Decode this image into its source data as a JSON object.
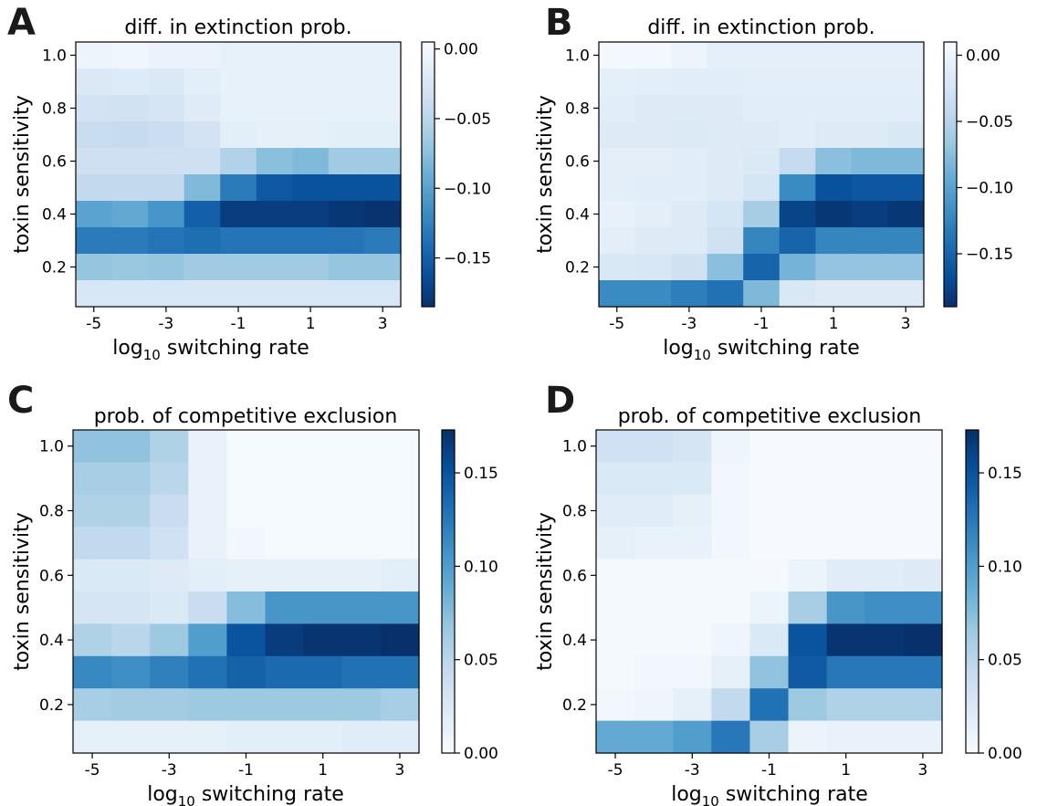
{
  "figure": {
    "colormap": [
      "#f7fbff",
      "#deebf7",
      "#c6dbef",
      "#9ecae1",
      "#6baed6",
      "#4292c6",
      "#2171b5",
      "#08519c",
      "#08306b"
    ]
  },
  "chart_data": [
    {
      "panel": "A",
      "type": "heatmap",
      "title": "diff. in extinction prob.",
      "xlabel_main": "log",
      "xlabel_sub": "10",
      "xlabel_rest": " switching rate",
      "ylabel": "toxin sensitivity",
      "x_ticks": [
        "-5",
        "-3",
        "-1",
        "1",
        "3"
      ],
      "y_ticks": [
        "1.0",
        "0.8",
        "0.6",
        "0.4",
        "0.2"
      ],
      "colorbar": {
        "min": -0.185,
        "max": 0.005,
        "ticks": [
          "0.00",
          "−0.05",
          "−0.10",
          "−0.15"
        ],
        "tick_values": [
          0.0,
          -0.05,
          -0.1,
          -0.15
        ],
        "reversed": true
      },
      "y_rows": [
        "1.0",
        "0.9",
        "0.8",
        "0.7",
        "0.6",
        "0.5",
        "0.4",
        "0.3",
        "0.2",
        "0.1"
      ],
      "x_cols": [
        -5,
        -4,
        -3,
        -2,
        -1,
        0,
        1,
        2,
        3
      ],
      "values": [
        [
          -0.005,
          -0.003,
          -0.007,
          -0.007,
          -0.01,
          -0.01,
          -0.01,
          -0.01,
          -0.01
        ],
        [
          -0.022,
          -0.02,
          -0.022,
          -0.015,
          -0.01,
          -0.01,
          -0.01,
          -0.01,
          -0.01
        ],
        [
          -0.03,
          -0.032,
          -0.028,
          -0.018,
          -0.01,
          -0.01,
          -0.01,
          -0.01,
          -0.01
        ],
        [
          -0.04,
          -0.042,
          -0.038,
          -0.03,
          -0.015,
          -0.012,
          -0.012,
          -0.015,
          -0.015
        ],
        [
          -0.035,
          -0.035,
          -0.035,
          -0.035,
          -0.055,
          -0.075,
          -0.08,
          -0.065,
          -0.065
        ],
        [
          -0.045,
          -0.045,
          -0.045,
          -0.08,
          -0.13,
          -0.155,
          -0.16,
          -0.16,
          -0.16
        ],
        [
          -0.1,
          -0.095,
          -0.11,
          -0.15,
          -0.175,
          -0.175,
          -0.175,
          -0.18,
          -0.183
        ],
        [
          -0.13,
          -0.13,
          -0.135,
          -0.14,
          -0.135,
          -0.135,
          -0.135,
          -0.135,
          -0.13
        ],
        [
          -0.07,
          -0.068,
          -0.07,
          -0.065,
          -0.065,
          -0.065,
          -0.065,
          -0.07,
          -0.07
        ],
        [
          -0.025,
          -0.025,
          -0.025,
          -0.025,
          -0.025,
          -0.025,
          -0.025,
          -0.025,
          -0.025
        ]
      ]
    },
    {
      "panel": "B",
      "type": "heatmap",
      "title": "diff. in extinction prob.",
      "xlabel_main": "log",
      "xlabel_sub": "10",
      "xlabel_rest": " switching rate",
      "ylabel": "toxin sensitivity",
      "x_ticks": [
        "-5",
        "-3",
        "-1",
        "1",
        "3"
      ],
      "y_ticks": [
        "1.0",
        "0.8",
        "0.6",
        "0.4",
        "0.2"
      ],
      "colorbar": {
        "min": -0.19,
        "max": 0.01,
        "ticks": [
          "0.00",
          "−0.05",
          "−0.10",
          "−0.15"
        ],
        "tick_values": [
          0.0,
          -0.05,
          -0.1,
          -0.15
        ],
        "reversed": true
      },
      "y_rows": [
        "1.0",
        "0.9",
        "0.8",
        "0.7",
        "0.6",
        "0.5",
        "0.4",
        "0.3",
        "0.2",
        "0.1"
      ],
      "x_cols": [
        -5,
        -4,
        -3,
        -2,
        -1,
        0,
        1,
        2,
        3
      ],
      "values": [
        [
          0.005,
          0.005,
          0.0,
          -0.008,
          -0.008,
          -0.008,
          -0.008,
          -0.008,
          -0.008
        ],
        [
          -0.008,
          -0.01,
          -0.012,
          -0.012,
          -0.01,
          -0.01,
          -0.01,
          -0.01,
          -0.01
        ],
        [
          -0.012,
          -0.015,
          -0.015,
          -0.015,
          -0.012,
          -0.012,
          -0.012,
          -0.012,
          -0.012
        ],
        [
          -0.015,
          -0.015,
          -0.017,
          -0.015,
          -0.015,
          -0.012,
          -0.015,
          -0.015,
          -0.02
        ],
        [
          -0.01,
          -0.01,
          -0.012,
          -0.015,
          -0.018,
          -0.04,
          -0.075,
          -0.08,
          -0.08
        ],
        [
          -0.01,
          -0.012,
          -0.012,
          -0.015,
          -0.025,
          -0.12,
          -0.165,
          -0.16,
          -0.16
        ],
        [
          -0.005,
          -0.01,
          -0.015,
          -0.025,
          -0.06,
          -0.175,
          -0.185,
          -0.18,
          -0.185
        ],
        [
          -0.01,
          -0.015,
          -0.015,
          -0.03,
          -0.125,
          -0.15,
          -0.125,
          -0.125,
          -0.125
        ],
        [
          -0.02,
          -0.022,
          -0.03,
          -0.075,
          -0.15,
          -0.085,
          -0.07,
          -0.07,
          -0.07
        ],
        [
          -0.12,
          -0.12,
          -0.13,
          -0.14,
          -0.08,
          -0.02,
          -0.015,
          -0.015,
          -0.015
        ]
      ]
    },
    {
      "panel": "C",
      "type": "heatmap",
      "title": "prob. of competitive exclusion",
      "xlabel_main": "log",
      "xlabel_sub": "10",
      "xlabel_rest": " switching rate",
      "ylabel": "toxin sensitivity",
      "x_ticks": [
        "-5",
        "-3",
        "-1",
        "1",
        "3"
      ],
      "y_ticks": [
        "1.0",
        "0.8",
        "0.6",
        "0.4",
        "0.2"
      ],
      "colorbar": {
        "min": 0.0,
        "max": 0.173,
        "ticks": [
          "0.00",
          "0.05",
          "0.10",
          "0.15"
        ],
        "tick_values": [
          0.0,
          0.05,
          0.1,
          0.15
        ],
        "reversed": false
      },
      "y_rows": [
        "1.0",
        "0.9",
        "0.8",
        "0.7",
        "0.6",
        "0.5",
        "0.4",
        "0.3",
        "0.2",
        "0.1"
      ],
      "x_cols": [
        -5,
        -4,
        -3,
        -2,
        -1,
        0,
        1,
        2,
        3
      ],
      "values": [
        [
          0.07,
          0.07,
          0.055,
          0.012,
          0.002,
          0.002,
          0.002,
          0.002,
          0.002
        ],
        [
          0.06,
          0.06,
          0.05,
          0.012,
          0.002,
          0.002,
          0.002,
          0.002,
          0.002
        ],
        [
          0.055,
          0.055,
          0.04,
          0.012,
          0.002,
          0.002,
          0.002,
          0.002,
          0.002
        ],
        [
          0.045,
          0.045,
          0.035,
          0.012,
          0.005,
          0.002,
          0.002,
          0.002,
          0.002
        ],
        [
          0.025,
          0.025,
          0.022,
          0.018,
          0.015,
          0.015,
          0.015,
          0.015,
          0.018
        ],
        [
          0.03,
          0.03,
          0.025,
          0.04,
          0.075,
          0.105,
          0.105,
          0.105,
          0.105
        ],
        [
          0.055,
          0.05,
          0.065,
          0.1,
          0.15,
          0.165,
          0.17,
          0.17,
          0.173
        ],
        [
          0.115,
          0.11,
          0.12,
          0.13,
          0.14,
          0.135,
          0.135,
          0.13,
          0.13
        ],
        [
          0.06,
          0.062,
          0.062,
          0.065,
          0.065,
          0.065,
          0.065,
          0.065,
          0.06
        ],
        [
          0.015,
          0.015,
          0.015,
          0.015,
          0.018,
          0.018,
          0.018,
          0.02,
          0.02
        ]
      ]
    },
    {
      "panel": "D",
      "type": "heatmap",
      "title": "prob. of competitive exclusion",
      "xlabel_main": "log",
      "xlabel_sub": "10",
      "xlabel_rest": " switching rate",
      "ylabel": "toxin sensitivity",
      "x_ticks": [
        "-5",
        "-3",
        "-1",
        "1",
        "3"
      ],
      "y_ticks": [
        "1.0",
        "0.8",
        "0.6",
        "0.4",
        "0.2"
      ],
      "colorbar": {
        "min": 0.0,
        "max": 0.173,
        "ticks": [
          "0.00",
          "0.05",
          "0.10",
          "0.15"
        ],
        "tick_values": [
          0.0,
          0.05,
          0.1,
          0.15
        ],
        "reversed": false
      },
      "y_rows": [
        "1.0",
        "0.9",
        "0.8",
        "0.7",
        "0.6",
        "0.5",
        "0.4",
        "0.3",
        "0.2",
        "0.1"
      ],
      "x_cols": [
        -5,
        -4,
        -3,
        -2,
        -1,
        0,
        1,
        2,
        3
      ],
      "values": [
        [
          0.035,
          0.035,
          0.03,
          0.008,
          0.001,
          0.001,
          0.001,
          0.001,
          0.001
        ],
        [
          0.025,
          0.025,
          0.025,
          0.005,
          0.001,
          0.001,
          0.001,
          0.001,
          0.001
        ],
        [
          0.02,
          0.02,
          0.015,
          0.005,
          0.001,
          0.001,
          0.001,
          0.001,
          0.001
        ],
        [
          0.015,
          0.012,
          0.012,
          0.005,
          0.001,
          0.001,
          0.001,
          0.001,
          0.001
        ],
        [
          0.003,
          0.003,
          0.003,
          0.003,
          0.003,
          0.01,
          0.02,
          0.02,
          0.022
        ],
        [
          0.003,
          0.003,
          0.003,
          0.003,
          0.01,
          0.06,
          0.105,
          0.11,
          0.11
        ],
        [
          0.003,
          0.003,
          0.003,
          0.008,
          0.025,
          0.15,
          0.17,
          0.17,
          0.173
        ],
        [
          0.003,
          0.005,
          0.005,
          0.015,
          0.07,
          0.145,
          0.125,
          0.125,
          0.125
        ],
        [
          0.005,
          0.008,
          0.015,
          0.045,
          0.13,
          0.065,
          0.055,
          0.055,
          0.055
        ],
        [
          0.09,
          0.09,
          0.1,
          0.125,
          0.06,
          0.01,
          0.012,
          0.012,
          0.012
        ]
      ]
    }
  ]
}
